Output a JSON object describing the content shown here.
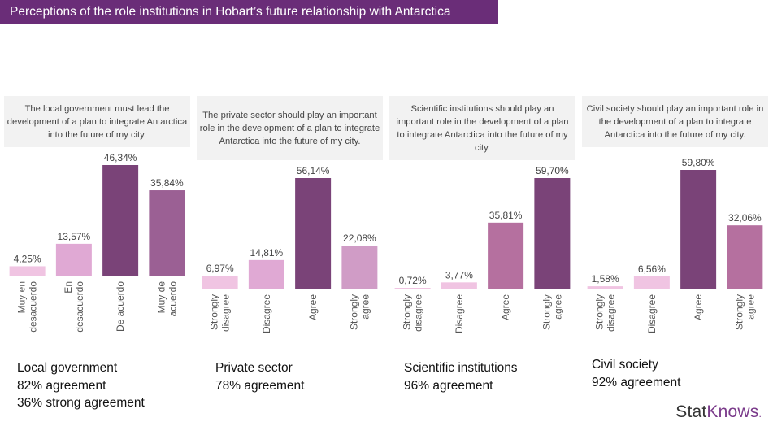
{
  "title": "Perceptions of the role institutions in Hobart’s future relationship with Antarctica",
  "brand": {
    "stat": "Stat",
    "knows": "Knows",
    "dot": "."
  },
  "chart_data": [
    {
      "type": "bar",
      "title": "The local government must lead the development of a plan to integrate Antarctica into the future of my city.",
      "categories": [
        [
          "Muy en",
          "desacuerdo"
        ],
        [
          "En",
          "desacuerdo"
        ],
        [
          "De acuerdo"
        ],
        [
          "Muy de",
          "acuerdo"
        ]
      ],
      "values": [
        4.25,
        13.57,
        46.34,
        35.84
      ],
      "value_labels": [
        "4,25%",
        "13,57%",
        "46,34%",
        "35,84%"
      ],
      "colors": [
        "#f0c4e2",
        "#e0a9d4",
        "#7a4378",
        "#9b6094"
      ],
      "ylim": [
        0,
        46.34
      ]
    },
    {
      "type": "bar",
      "title": "The private sector should play an important role in the development of a plan to integrate Antarctica into the future of my city.",
      "categories": [
        [
          "Strongly",
          "disagree"
        ],
        [
          "Disagree"
        ],
        [
          "Agree"
        ],
        [
          "Strongly",
          "agree"
        ]
      ],
      "values": [
        6.97,
        14.81,
        56.14,
        22.08
      ],
      "value_labels": [
        "6,97%",
        "14,81%",
        "56,14%",
        "22,08%"
      ],
      "colors": [
        "#f0c4e2",
        "#e0a9d4",
        "#7a4378",
        "#d09cc6"
      ],
      "ylim": [
        0,
        56.14
      ]
    },
    {
      "type": "bar",
      "title": "Scientific institutions should play an important role in the development of a plan to integrate Antarctica into the future of my city.",
      "categories": [
        [
          "Strongly",
          "disagree"
        ],
        [
          "Disagree"
        ],
        [
          "Agree"
        ],
        [
          "Strongly",
          "agree"
        ]
      ],
      "values": [
        0.72,
        3.77,
        35.81,
        59.7
      ],
      "value_labels": [
        "0,72%",
        "3,77%",
        "35,81%",
        "59,70%"
      ],
      "colors": [
        "#f0c4e2",
        "#f0c4e2",
        "#b5709f",
        "#7a4378"
      ],
      "ylim": [
        0,
        59.7
      ]
    },
    {
      "type": "bar",
      "title": "Civil society should play an important role in the development of a plan to integrate Antarctica into the future of my city.",
      "categories": [
        [
          "Strongly",
          "disagree"
        ],
        [
          "Disagree"
        ],
        [
          "Agree"
        ],
        [
          "Strongly",
          "agree"
        ]
      ],
      "values": [
        1.58,
        6.56,
        59.8,
        32.06
      ],
      "value_labels": [
        "1,58%",
        "6,56%",
        "59,80%",
        "32,06%"
      ],
      "colors": [
        "#f0c4e2",
        "#f0c4e2",
        "#7a4378",
        "#b5709f"
      ],
      "ylim": [
        0,
        59.8
      ]
    }
  ],
  "summaries": [
    {
      "lines": [
        "Local government",
        "82% agreement",
        "36% strong agreement"
      ]
    },
    {
      "lines": [
        "Private sector",
        "78% agreement"
      ]
    },
    {
      "lines": [
        "Scientific institutions",
        "96% agreement"
      ]
    },
    {
      "lines": [
        "Civil society",
        "92% agreement"
      ]
    }
  ]
}
